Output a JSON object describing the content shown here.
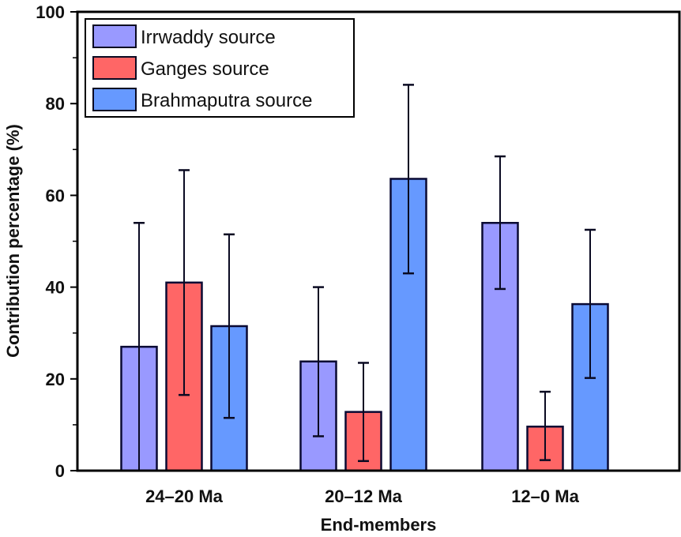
{
  "chart_data": {
    "type": "bar",
    "title": "",
    "xlabel": "End-members",
    "ylabel": "Contribution percentage (%)",
    "ylim": [
      0,
      100
    ],
    "yticks": [
      0,
      20,
      40,
      60,
      80,
      100
    ],
    "yticks_minor": [
      10,
      30,
      50,
      70,
      90
    ],
    "grid": false,
    "legend_position": "top-left",
    "categories": [
      "24–20 Ma",
      "20–12 Ma",
      "12–0 Ma"
    ],
    "series": [
      {
        "name": "Irrwaddy source",
        "color": "#9999ff",
        "values": [
          27.0,
          23.8,
          54.0
        ],
        "err_high": [
          54.0,
          40.0,
          68.5
        ],
        "err_low": [
          0.0,
          7.5,
          39.6
        ]
      },
      {
        "name": "Ganges source",
        "color": "#ff6666",
        "values": [
          41.0,
          12.8,
          9.6
        ],
        "err_high": [
          65.5,
          23.5,
          17.2
        ],
        "err_low": [
          16.5,
          2.1,
          2.3
        ]
      },
      {
        "name": "Brahmaputra source",
        "color": "#6699ff",
        "values": [
          31.5,
          63.6,
          36.3
        ],
        "err_high": [
          51.5,
          84.1,
          52.5
        ],
        "err_low": [
          11.5,
          43.0,
          20.2
        ]
      }
    ]
  }
}
